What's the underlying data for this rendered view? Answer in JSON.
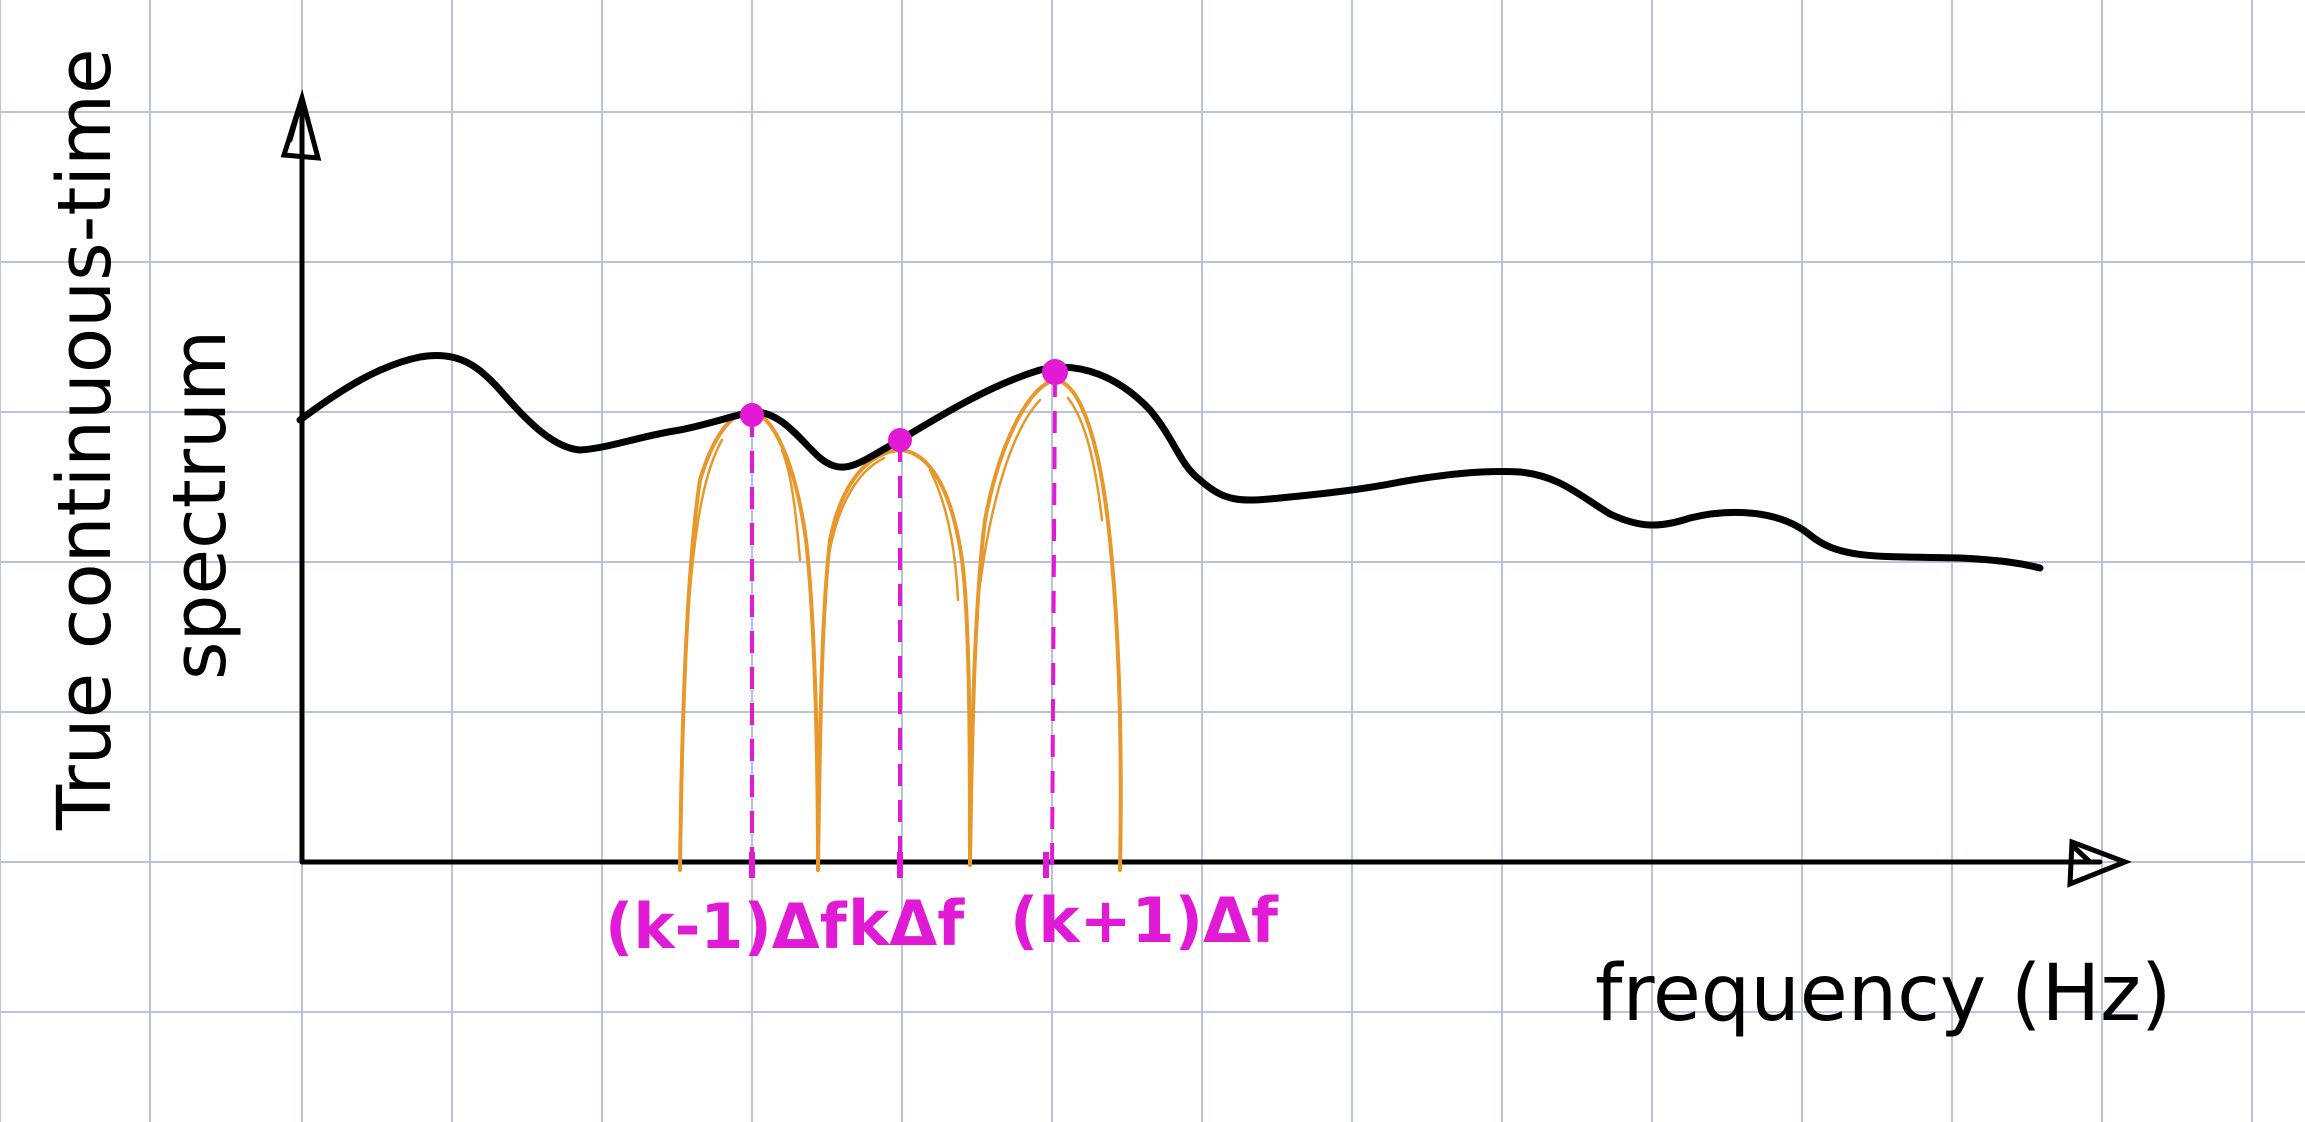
{
  "diagram": {
    "y_axis_label_line1": "True continuous-time",
    "y_axis_label_line2": "spectrum",
    "x_axis_label": "frequency (Hz)",
    "bins": [
      {
        "label": "(k-1)Δf"
      },
      {
        "label": "kΔf"
      },
      {
        "label": "(k+1)Δf"
      }
    ],
    "colors": {
      "grid": "#b8c4dc",
      "spectrum": "#000000",
      "bin_window": "#e8972a",
      "bin_marker": "#e11ad6",
      "axes": "#000000"
    }
  }
}
